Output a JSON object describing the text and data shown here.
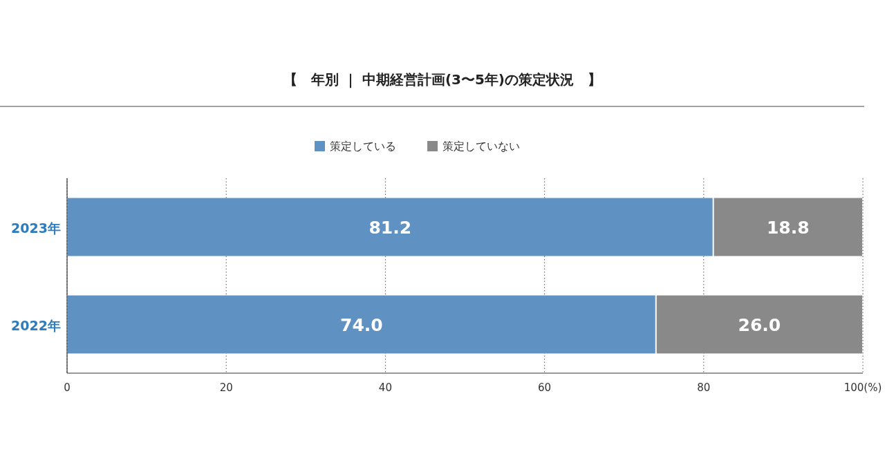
{
  "chart_data": {
    "type": "bar",
    "orientation": "horizontal",
    "stacked": true,
    "title": "【　年別 ｜ 中期経営計画(3〜5年)の策定状況　】",
    "categories": [
      "2023年",
      "2022年"
    ],
    "series": [
      {
        "name": "策定している",
        "color": "#5f91c2",
        "values": [
          81.2,
          74.0
        ],
        "value_labels": [
          "81.2",
          "74.0"
        ]
      },
      {
        "name": "策定していない",
        "color": "#898989",
        "values": [
          18.8,
          26.0
        ],
        "value_labels": [
          "18.8",
          "26.0"
        ]
      }
    ],
    "xlim": [
      0,
      100
    ],
    "xticks": [
      0,
      20,
      40,
      60,
      80,
      {
        "value": 100,
        "label": "100(%)"
      }
    ],
    "grid": "x",
    "legend": "top"
  }
}
